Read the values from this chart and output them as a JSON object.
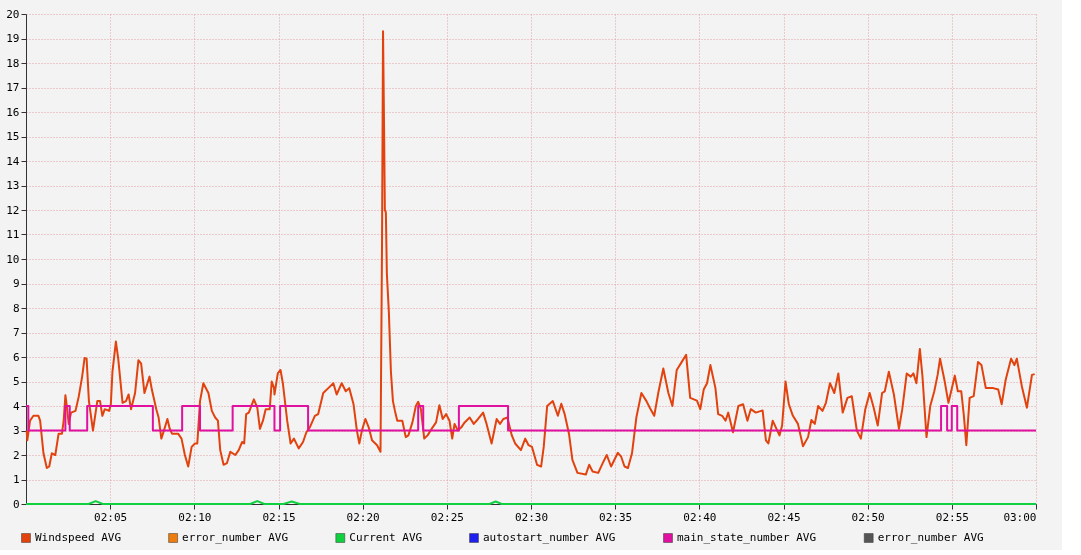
{
  "chart_data": {
    "type": "line",
    "xlim": [
      2.0,
      3.0
    ],
    "ylim": [
      0,
      20
    ],
    "xticks": [
      {
        "value": 2.0833,
        "label": "02:05"
      },
      {
        "value": 2.1667,
        "label": "02:10"
      },
      {
        "value": 2.25,
        "label": "02:15"
      },
      {
        "value": 2.3333,
        "label": "02:20"
      },
      {
        "value": 2.4167,
        "label": "02:25"
      },
      {
        "value": 2.5,
        "label": "02:30"
      },
      {
        "value": 2.5833,
        "label": "02:35"
      },
      {
        "value": 2.6667,
        "label": "02:40"
      },
      {
        "value": 2.75,
        "label": "02:45"
      },
      {
        "value": 2.8333,
        "label": "02:50"
      },
      {
        "value": 2.9167,
        "label": "02:55"
      },
      {
        "value": 3.0,
        "label": "03:00"
      }
    ],
    "yticks": [
      0,
      1,
      2,
      3,
      4,
      5,
      6,
      7,
      8,
      9,
      10,
      11,
      12,
      13,
      14,
      15,
      16,
      17,
      18,
      19,
      20
    ],
    "grid": true,
    "legend": "bottom",
    "series": [
      {
        "name": "Windspeed AVG",
        "color": "#e2420e",
        "x": [
          2.0006,
          2.0013,
          2.004,
          2.0073,
          2.0123,
          2.014,
          2.0173,
          2.0206,
          2.023,
          2.0256,
          2.029,
          2.0323,
          2.0356,
          2.0373,
          2.039,
          2.0406,
          2.0423,
          2.0446,
          2.049,
          2.0523,
          2.0556,
          2.058,
          2.06,
          2.0623,
          2.0663,
          2.0706,
          2.0733,
          2.0756,
          2.078,
          2.0823,
          2.084,
          2.0856,
          2.089,
          2.0913,
          2.0956,
          2.099,
          2.1016,
          2.104,
          2.108,
          2.1113,
          2.114,
          2.1173,
          2.1223,
          2.1246,
          2.129,
          2.1313,
          2.134,
          2.1366,
          2.14,
          2.1423,
          2.1446,
          2.1506,
          2.154,
          2.1573,
          2.1606,
          2.164,
          2.1673,
          2.1696,
          2.1723,
          2.1756,
          2.1806,
          2.184,
          2.1873,
          2.19,
          2.1923,
          2.1956,
          2.199,
          2.2023,
          2.2073,
          2.2106,
          2.214,
          2.216,
          2.218,
          2.2206,
          2.2256,
          2.229,
          2.2316,
          2.2346,
          2.2373,
          2.2413,
          2.2433,
          2.2456,
          2.246,
          2.2493,
          2.252,
          2.2543,
          2.2586,
          2.262,
          2.2653,
          2.27,
          2.2743,
          2.2776,
          2.281,
          2.286,
          2.2893,
          2.2943,
          2.2993,
          2.3043,
          2.3076,
          2.3126,
          2.3166,
          2.32,
          2.3243,
          2.3276,
          2.33,
          2.3326,
          2.336,
          2.3393,
          2.3426,
          2.3476,
          2.351,
          2.3525,
          2.3535,
          2.3545,
          2.3553,
          2.3563,
          2.3573,
          2.3593,
          2.3603,
          2.3613,
          2.3633,
          2.3653,
          2.3676,
          2.3726,
          2.376,
          2.3786,
          2.3826,
          2.386,
          2.3883,
          2.391,
          2.3943,
          2.3976,
          2.4026,
          2.406,
          2.4093,
          2.4126,
          2.416,
          2.4193,
          2.422,
          2.4243,
          2.4276,
          2.431,
          2.4343,
          2.4393,
          2.4433,
          2.4476,
          2.4526,
          2.456,
          2.461,
          2.466,
          2.4693,
          2.4726,
          2.4766,
          2.481,
          2.4843,
          2.49,
          2.4943,
          2.4976,
          2.501,
          2.506,
          2.51,
          2.5126,
          2.516,
          2.5216,
          2.5266,
          2.53,
          2.5333,
          2.5376,
          2.541,
          2.546,
          2.5543,
          2.5576,
          2.561,
          2.5666,
          2.571,
          2.575,
          2.5793,
          2.586,
          2.5893,
          2.5926,
          2.596,
          2.6,
          2.6043,
          2.6093,
          2.6143,
          2.6176,
          2.622,
          2.626,
          2.631,
          2.636,
          2.64,
          2.6443,
          2.6493,
          2.6536,
          2.6576,
          2.6643,
          2.6676,
          2.671,
          2.6743,
          2.6776,
          2.6826,
          2.6853,
          2.6893,
          2.6926,
          2.6953,
          2.7,
          2.7053,
          2.71,
          2.7143,
          2.7176,
          2.7226,
          2.7293,
          2.7326,
          2.735,
          2.7393,
          2.746,
          2.7486,
          2.752,
          2.7553,
          2.7593,
          2.7643,
          2.7693,
          2.7743,
          2.7776,
          2.781,
          2.7843,
          2.7886,
          2.792,
          2.796,
          2.8003,
          2.8043,
          2.8086,
          2.8133,
          2.8176,
          2.8226,
          2.8266,
          2.831,
          2.8353,
          2.8393,
          2.8433,
          2.8476,
          2.8503,
          2.8543,
          2.8593,
          2.8643,
          2.8676,
          2.872,
          2.876,
          2.8786,
          2.8816,
          2.885,
          2.8876,
          2.8916,
          2.8953,
          2.8993,
          2.9026,
          2.905,
          2.9093,
          2.9133,
          2.916,
          2.9196,
          2.9226,
          2.926,
          2.9286,
          2.931,
          2.9343,
          2.9383,
          2.9426,
          2.946,
          2.9503,
          2.9576,
          2.9626,
          2.966,
          2.97,
          2.9753,
          2.9786,
          2.981,
          2.986,
          2.991,
          2.996,
          2.9987
        ],
        "values": [
          3.0,
          2.6,
          3.4,
          3.6,
          3.6,
          3.4,
          2.07,
          1.47,
          1.53,
          2.07,
          2.0,
          2.87,
          2.87,
          3.4,
          4.44,
          3.93,
          3.27,
          3.73,
          3.8,
          4.4,
          5.2,
          5.96,
          5.93,
          4.2,
          3.0,
          4.2,
          4.2,
          3.6,
          3.87,
          3.8,
          4.07,
          5.4,
          6.63,
          5.93,
          4.13,
          4.2,
          4.47,
          3.87,
          4.53,
          5.87,
          5.73,
          4.53,
          5.2,
          4.67,
          3.87,
          3.53,
          2.67,
          3.0,
          3.47,
          3.07,
          2.87,
          2.87,
          2.67,
          2.0,
          1.53,
          2.33,
          2.47,
          2.47,
          4.2,
          4.93,
          4.53,
          3.8,
          3.53,
          3.4,
          2.2,
          1.6,
          1.67,
          2.13,
          2.0,
          2.2,
          2.53,
          2.47,
          3.67,
          3.73,
          4.27,
          3.93,
          3.07,
          3.4,
          3.87,
          3.87,
          5.0,
          4.73,
          4.47,
          5.33,
          5.47,
          4.93,
          3.4,
          2.47,
          2.67,
          2.27,
          2.53,
          2.93,
          3.13,
          3.6,
          3.67,
          4.53,
          4.73,
          4.93,
          4.47,
          4.93,
          4.6,
          4.73,
          4.07,
          3.0,
          2.47,
          3.0,
          3.47,
          3.13,
          2.6,
          2.4,
          2.13,
          10.6,
          19.3,
          15.5,
          12.0,
          11.9,
          9.4,
          7.8,
          6.6,
          5.4,
          4.2,
          3.8,
          3.4,
          3.4,
          2.73,
          2.8,
          3.33,
          4.0,
          4.17,
          3.87,
          2.67,
          2.8,
          3.13,
          3.33,
          4.03,
          3.47,
          3.67,
          3.4,
          2.67,
          3.27,
          3.0,
          3.13,
          3.33,
          3.53,
          3.27,
          3.47,
          3.73,
          3.27,
          2.47,
          3.47,
          3.27,
          3.47,
          3.53,
          2.8,
          2.47,
          2.2,
          2.67,
          2.4,
          2.33,
          1.6,
          1.53,
          2.33,
          4.0,
          4.2,
          3.6,
          4.09,
          3.67,
          2.87,
          1.8,
          1.27,
          1.2,
          1.6,
          1.33,
          1.27,
          1.67,
          2.0,
          1.53,
          2.09,
          1.93,
          1.53,
          1.47,
          2.07,
          3.53,
          4.53,
          4.2,
          3.93,
          3.6,
          4.53,
          5.53,
          4.53,
          4.0,
          5.47,
          5.8,
          6.09,
          4.33,
          4.22,
          3.87,
          4.67,
          4.93,
          5.67,
          4.73,
          3.67,
          3.6,
          3.4,
          3.73,
          2.93,
          4.0,
          4.07,
          3.4,
          3.87,
          3.73,
          3.82,
          2.6,
          2.47,
          3.4,
          2.8,
          3.2,
          5.0,
          4.07,
          3.6,
          3.27,
          2.36,
          2.73,
          3.43,
          3.27,
          4.0,
          3.8,
          4.13,
          4.93,
          4.53,
          5.33,
          3.73,
          4.33,
          4.4,
          3.0,
          2.67,
          3.87,
          4.53,
          3.93,
          3.2,
          4.53,
          4.6,
          5.4,
          4.47,
          3.07,
          3.87,
          5.33,
          5.2,
          5.33,
          4.93,
          6.33,
          5.2,
          2.73,
          4.0,
          4.6,
          5.27,
          5.93,
          5.07,
          4.13,
          4.6,
          5.24,
          4.6,
          4.6,
          3.6,
          2.4,
          4.33,
          4.4,
          5.8,
          5.67,
          4.73,
          4.73,
          4.67,
          4.07,
          5.07,
          5.93,
          5.67,
          5.93,
          4.8,
          3.93,
          5.27,
          5.3
        ]
      },
      {
        "name": "error_number AVG",
        "color": "#ee7d10"
      },
      {
        "name": "Current AVG",
        "color": "#10d040",
        "x": [
          2.0,
          2.062,
          2.069,
          2.076,
          2.222,
          2.229,
          2.236,
          2.255,
          2.263,
          2.271,
          2.459,
          2.465,
          2.471,
          3.0
        ],
        "values": [
          0,
          0,
          0.12,
          0,
          0,
          0.12,
          0,
          0,
          0.1,
          0,
          0,
          0.1,
          0,
          0
        ]
      },
      {
        "name": "autostart_number AVG",
        "color": "#2020ee"
      },
      {
        "name": "main_state_number AVG",
        "color": "#e010a0",
        "type": "step",
        "x": [
          2.0,
          2.0023,
          2.039,
          2.0433,
          2.0606,
          2.1256,
          2.1546,
          2.1723,
          2.2046,
          2.246,
          2.2516,
          2.2793,
          2.3883,
          2.3933,
          2.4286,
          2.4773,
          2.906,
          2.912,
          2.9166,
          2.922,
          3.0
        ],
        "values": [
          4,
          3,
          4,
          3,
          4,
          3,
          4,
          3,
          4,
          3,
          4,
          3,
          4,
          3,
          4,
          3,
          4,
          3,
          4,
          3,
          3
        ]
      },
      {
        "name": "error_number AVG",
        "color": "#555555"
      }
    ]
  }
}
